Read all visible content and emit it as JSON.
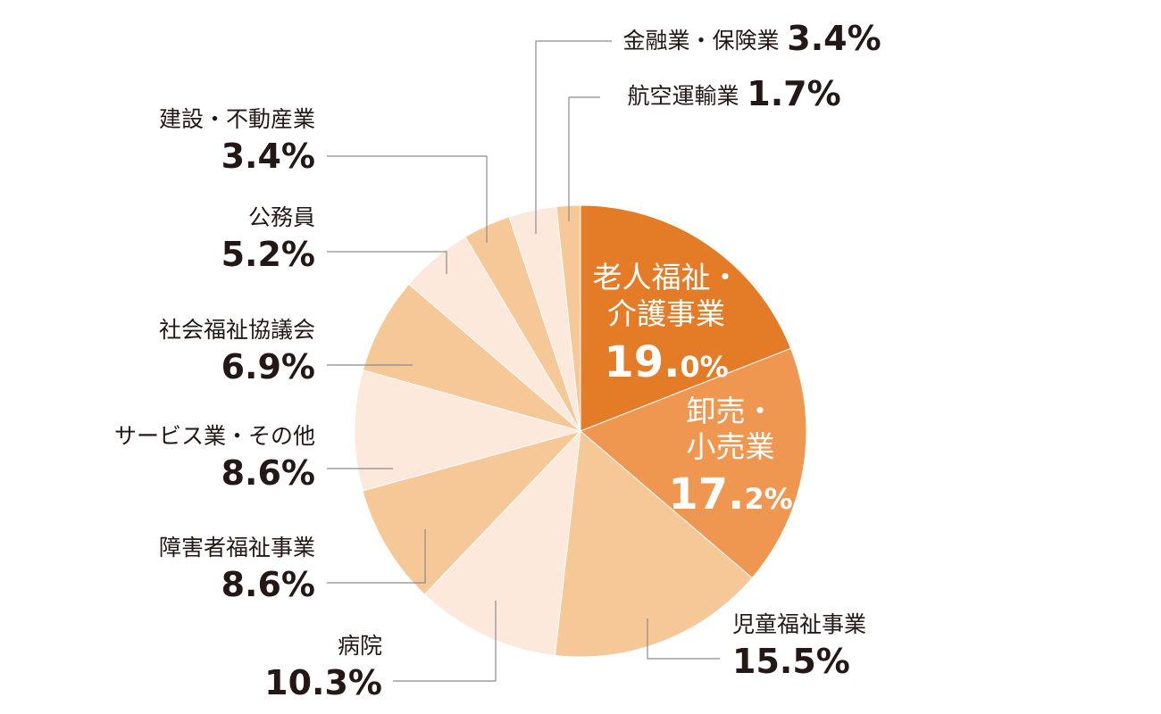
{
  "chart_data": {
    "type": "pie",
    "slices": [
      {
        "label": "老人福祉・介護事業",
        "value": 19.0,
        "value_text": "19.0%",
        "color": "#e37b27"
      },
      {
        "label": "卸売・小売業",
        "value": 17.2,
        "value_text": "17.2%",
        "color": "#ef9651"
      },
      {
        "label": "児童福祉事業",
        "value": 15.5,
        "value_text": "15.5%",
        "color": "#f6c898"
      },
      {
        "label": "病院",
        "value": 10.3,
        "value_text": "10.3%",
        "color": "#fce9dc"
      },
      {
        "label": "障害者福祉事業",
        "value": 8.6,
        "value_text": "8.6%",
        "color": "#f6c898"
      },
      {
        "label": "サービス業・その他",
        "value": 8.6,
        "value_text": "8.6%",
        "color": "#fce9dc"
      },
      {
        "label": "社会福祉協議会",
        "value": 6.9,
        "value_text": "6.9%",
        "color": "#f6c898"
      },
      {
        "label": "公務員",
        "value": 5.2,
        "value_text": "5.2%",
        "color": "#fce9dc"
      },
      {
        "label": "建設・不動産業",
        "value": 3.4,
        "value_text": "3.4%",
        "color": "#f6c898"
      },
      {
        "label": "金融業・保険業",
        "value": 3.4,
        "value_text": "3.4%",
        "color": "#fce9dc"
      },
      {
        "label": "航空運輸業",
        "value": 1.7,
        "value_text": "1.7%",
        "color": "#f6c898"
      }
    ],
    "inside_labels": {
      "elderly": {
        "line1": "老人福祉・",
        "line2": "介護事業",
        "pct_int": "19.",
        "pct_dec": "0%"
      },
      "retail": {
        "line1": "卸売・",
        "line2": "小売業",
        "pct_int": "17.",
        "pct_dec": "2%"
      }
    },
    "start_angle": "12 o'clock",
    "direction": "clockwise",
    "legend": "none"
  }
}
